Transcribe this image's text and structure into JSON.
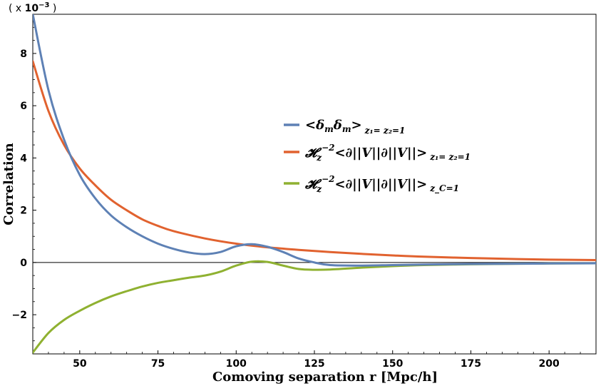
{
  "chart_data": {
    "type": "line",
    "title": "",
    "xlabel": "Comoving separation r [Mpc/h]",
    "ylabel": "Correlation",
    "scale_note_prefix": "( x ",
    "scale_note_power": "10",
    "scale_note_exponent": "−3",
    "scale_note_suffix": " )",
    "xlim": [
      35,
      215
    ],
    "ylim": [
      -3.5,
      9.5
    ],
    "xticks": [
      50,
      75,
      100,
      125,
      150,
      175,
      200
    ],
    "yticks": [
      -2,
      0,
      2,
      4,
      6,
      8
    ],
    "ytick_labels": [
      "−2",
      "0",
      "2",
      "4",
      "6",
      "8"
    ],
    "zero_line": true,
    "legend_position": "center-right",
    "series": [
      {
        "name": "⟨δmδm⟩ z1=z2=1",
        "color": "#5e81b5",
        "legend": {
          "main": "<δ",
          "sub1": "m",
          "mid": "δ",
          "sub2": "m",
          "end": ">",
          "cond": "z₁= z₂=1"
        },
        "x": [
          35,
          40,
          45,
          50,
          55,
          60,
          65,
          70,
          75,
          80,
          85,
          90,
          95,
          100,
          105,
          110,
          115,
          120,
          125,
          130,
          140,
          150,
          160,
          175,
          190,
          200,
          215
        ],
        "values": [
          9.5,
          6.6,
          4.7,
          3.35,
          2.45,
          1.8,
          1.35,
          1.0,
          0.72,
          0.52,
          0.38,
          0.32,
          0.4,
          0.62,
          0.7,
          0.6,
          0.4,
          0.15,
          0.0,
          -0.1,
          -0.12,
          -0.1,
          -0.08,
          -0.06,
          -0.05,
          -0.04,
          -0.03
        ]
      },
      {
        "name": "Hz^-2 ⟨∂||V||∂||V||⟩ z1=z2=1",
        "color": "#e1622f",
        "legend": {
          "main": "𝓗",
          "sub1": "z",
          "sup": "−2",
          "end": "<∂||V||∂||V||>",
          "cond": "z₁= z₂=1"
        },
        "x": [
          35,
          40,
          45,
          50,
          55,
          60,
          65,
          70,
          75,
          80,
          90,
          100,
          110,
          120,
          130,
          140,
          150,
          160,
          175,
          190,
          200,
          215
        ],
        "values": [
          7.7,
          5.8,
          4.5,
          3.6,
          2.95,
          2.4,
          2.0,
          1.65,
          1.4,
          1.2,
          0.92,
          0.72,
          0.58,
          0.48,
          0.4,
          0.33,
          0.27,
          0.22,
          0.17,
          0.13,
          0.11,
          0.09
        ]
      },
      {
        "name": "Hz^-2 ⟨∂||V||∂||V||⟩ zC=1",
        "color": "#8fb131",
        "legend": {
          "main": "𝓗",
          "sub1": "z",
          "sup": "−2",
          "end": "<∂||V||∂||V||>",
          "cond": "z_C=1"
        },
        "x": [
          35,
          40,
          45,
          50,
          55,
          60,
          65,
          70,
          75,
          80,
          85,
          90,
          95,
          100,
          105,
          110,
          115,
          120,
          125,
          130,
          140,
          150,
          160,
          175,
          190,
          200,
          215
        ],
        "values": [
          -3.45,
          -2.7,
          -2.2,
          -1.85,
          -1.55,
          -1.3,
          -1.1,
          -0.92,
          -0.78,
          -0.68,
          -0.58,
          -0.5,
          -0.35,
          -0.12,
          0.03,
          0.02,
          -0.12,
          -0.25,
          -0.28,
          -0.27,
          -0.2,
          -0.14,
          -0.1,
          -0.07,
          -0.05,
          -0.04,
          -0.03
        ]
      }
    ]
  }
}
